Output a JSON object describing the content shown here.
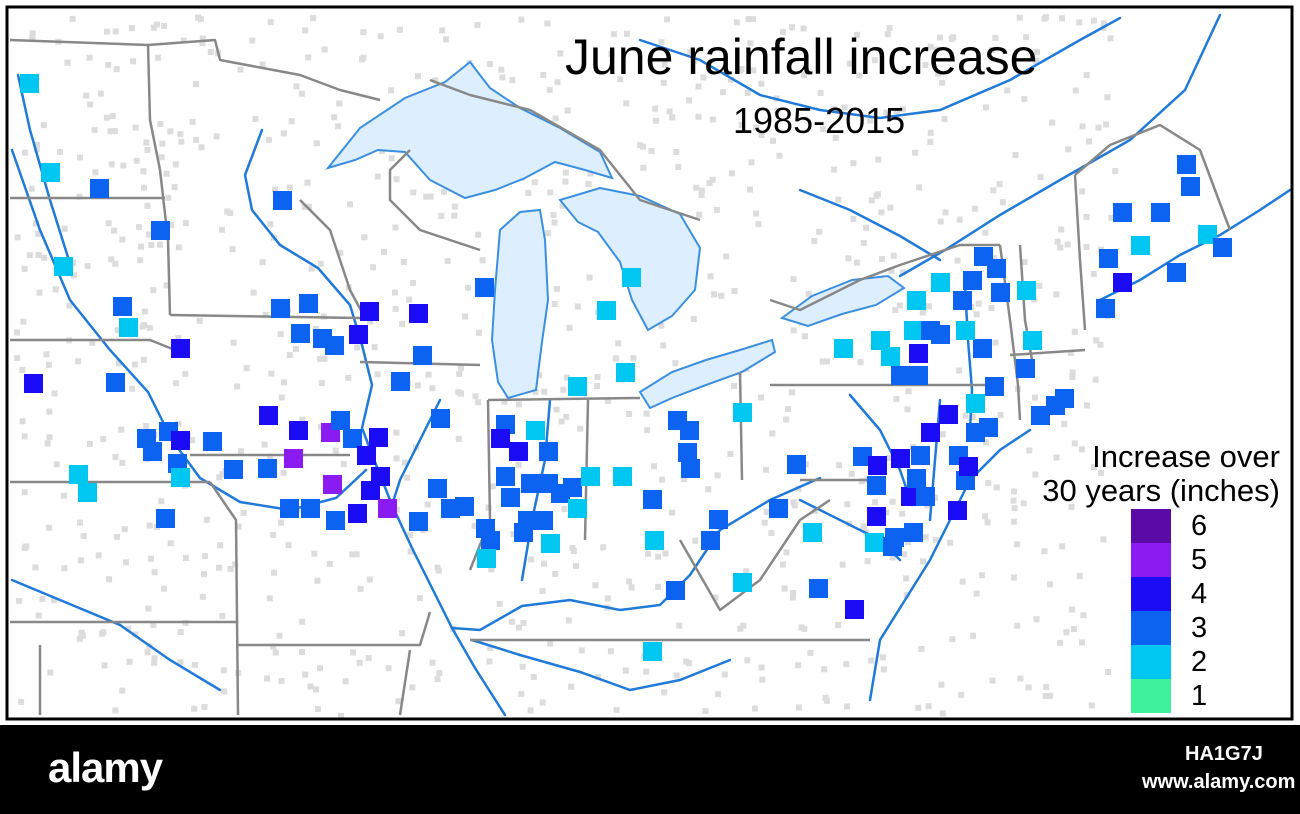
{
  "map": {
    "title": "June rainfall increase",
    "subtitle": "1985-2015",
    "background_color": "#ffffff",
    "land_color": "#ffffff",
    "lake_color": "#ddeeff",
    "river_color": "#1f7ad9",
    "border_color": "#888888",
    "station_color": "#dcdcdc"
  },
  "legend": {
    "title_line1": "Increase over",
    "title_line2": "30 years (inches)",
    "items": [
      {
        "label": "6",
        "color": "#5b0aa6"
      },
      {
        "label": "5",
        "color": "#8a1cf2"
      },
      {
        "label": "4",
        "color": "#1b0cf5"
      },
      {
        "label": "3",
        "color": "#0c63f2"
      },
      {
        "label": "2",
        "color": "#00c7f2"
      },
      {
        "label": "1",
        "color": "#3df29a"
      }
    ]
  },
  "footer": {
    "logo": "alamy",
    "image_id": "HA1G7J",
    "url": "www.alamy.com",
    "bar_color": "#000000"
  }
}
